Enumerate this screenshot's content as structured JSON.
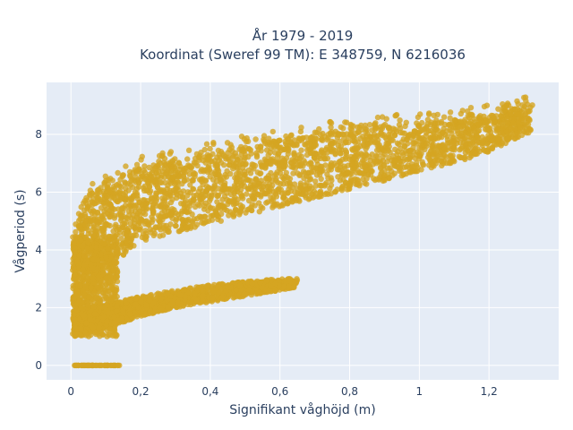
{
  "chart_data": {
    "type": "scatter",
    "title_line1": "År 1979 - 2019",
    "title_line2": "Koordinat (Sweref 99 TM): E 348759, N 6216036",
    "xlabel": "Signifikant våghöjd (m)",
    "ylabel": "Vågperiod (s)",
    "xlim": [
      -0.07,
      1.4
    ],
    "ylim": [
      -0.5,
      9.8
    ],
    "x_ticks": [
      0,
      0.2,
      0.4,
      0.6,
      0.8,
      1,
      1.2
    ],
    "x_tick_labels": [
      "0",
      "0,2",
      "0,4",
      "0,6",
      "0,8",
      "1",
      "1,2"
    ],
    "y_ticks": [
      0,
      2,
      4,
      6,
      8
    ],
    "y_tick_labels": [
      "0",
      "2",
      "4",
      "6",
      "8"
    ],
    "grid": true,
    "marker_color": "#d4a522",
    "background_color": "#e5ecf6",
    "series": [
      {
        "upper_band_envelope": {
          "x": [
            0.01,
            0.05,
            0.1,
            0.15,
            0.2,
            0.3,
            0.4,
            0.5,
            0.6,
            0.7,
            0.8,
            0.9,
            1.0,
            1.1,
            1.2,
            1.3
          ],
          "y_low": [
            1.3,
            2.3,
            3.2,
            3.8,
            4.3,
            4.6,
            4.9,
            5.2,
            5.5,
            5.8,
            6.1,
            6.4,
            6.7,
            7.0,
            7.4,
            8.0
          ],
          "y_high": [
            5.0,
            6.0,
            6.3,
            6.6,
            6.9,
            7.1,
            7.4,
            7.6,
            7.8,
            8.0,
            8.2,
            8.3,
            8.4,
            8.5,
            8.7,
            9.0
          ]
        },
        "lower_band_envelope": {
          "x": [
            0.01,
            0.1,
            0.2,
            0.3,
            0.4,
            0.5,
            0.6,
            0.65
          ],
          "y_low": [
            1.0,
            1.3,
            1.7,
            2.0,
            2.2,
            2.4,
            2.6,
            2.7
          ],
          "y_high": [
            1.9,
            2.1,
            2.4,
            2.6,
            2.8,
            2.9,
            3.0,
            3.0
          ]
        },
        "zero_period_segment": {
          "x_range": [
            0.01,
            0.14
          ],
          "y": 0
        }
      }
    ]
  }
}
